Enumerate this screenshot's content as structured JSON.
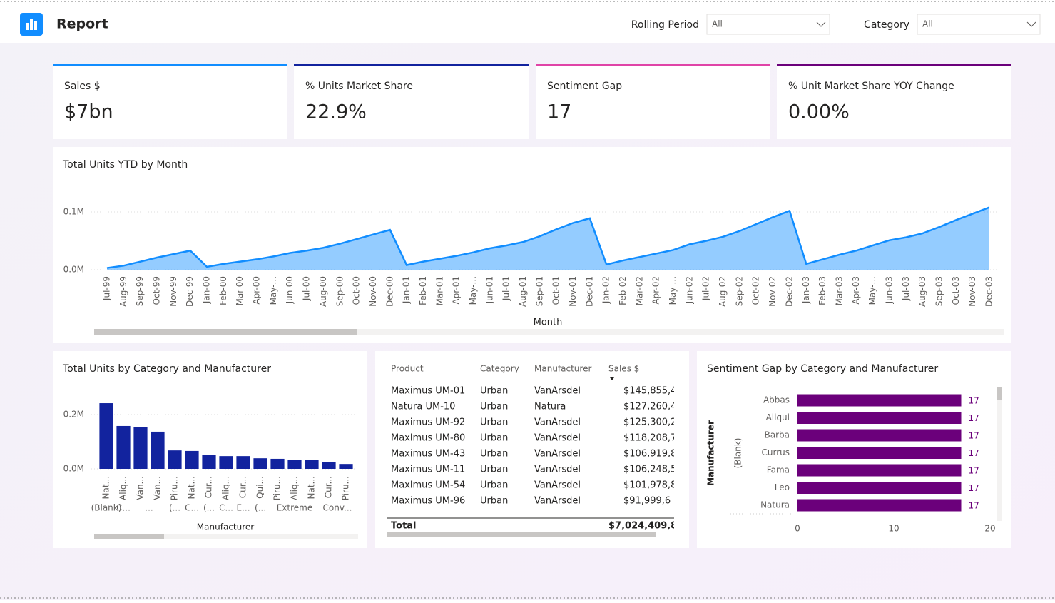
{
  "header": {
    "title": "Report"
  },
  "filters": [
    {
      "label": "Rolling Period",
      "value": "All"
    },
    {
      "label": "Category",
      "value": "All"
    }
  ],
  "kpis": [
    {
      "label": "Sales $",
      "value": "$7bn"
    },
    {
      "label": "% Units Market Share",
      "value": "22.9%"
    },
    {
      "label": "Sentiment Gap",
      "value": "17"
    },
    {
      "label": "% Unit Market Share YOY Change",
      "value": "0.00%"
    }
  ],
  "units_ytd_chart": {
    "type": "area",
    "title": "Total Units YTD by Month",
    "x_label": "Month",
    "categories": [
      "Jul-99",
      "Aug-99",
      "Sep-99",
      "Oct-99",
      "Nov-99",
      "Dec-99",
      "Jan-00",
      "Feb-00",
      "Mar-00",
      "Apr-00",
      "May-...",
      "Jun-00",
      "Jul-00",
      "Aug-00",
      "Sep-00",
      "Oct-00",
      "Nov-00",
      "Dec-00",
      "Jan-01",
      "Feb-01",
      "Mar-01",
      "Apr-01",
      "May-...",
      "Jun-01",
      "Jul-01",
      "Aug-01",
      "Sep-01",
      "Oct-01",
      "Nov-01",
      "Dec-01",
      "Jan-02",
      "Feb-02",
      "Mar-02",
      "Apr-02",
      "May-...",
      "Jun-02",
      "Jul-02",
      "Aug-02",
      "Sep-02",
      "Oct-02",
      "Nov-02",
      "Dec-02",
      "Jan-03",
      "Feb-03",
      "Mar-03",
      "Apr-03",
      "May-...",
      "Jun-03",
      "Jul-03",
      "Aug-03",
      "Sep-03",
      "Oct-03",
      "Nov-03",
      "Dec-03"
    ],
    "values": [
      3000,
      7000,
      14000,
      21000,
      27000,
      33000,
      5000,
      10000,
      14000,
      18000,
      23000,
      29000,
      33000,
      38000,
      45000,
      53000,
      61000,
      69000,
      8000,
      14000,
      19000,
      24000,
      30000,
      37000,
      42000,
      48000,
      58000,
      70000,
      81000,
      89000,
      9000,
      16000,
      22000,
      28000,
      34000,
      44000,
      50000,
      57000,
      67000,
      79000,
      91000,
      102000,
      10000,
      18000,
      26000,
      33000,
      42000,
      51000,
      56000,
      63000,
      74000,
      86000,
      97000,
      108000
    ],
    "color": "#118dff",
    "ylim": [
      0,
      110000
    ],
    "yticks": [
      {
        "value": 0,
        "label": "0.0M"
      },
      {
        "value": 100000,
        "label": "0.1M"
      }
    ],
    "grid": true
  },
  "units_by_manufacturer_chart": {
    "type": "bar",
    "title": "Total Units by Category and Manufacturer",
    "x_label": "Manufacturer",
    "categories": [
      "Nat...",
      "Aliq...",
      "Van...",
      "Van...",
      "Piru...",
      "Nat...",
      "Cur...",
      "Aliq...",
      "Cur...",
      "Qui...",
      "Piru...",
      "Aliq...",
      "Nat...",
      "Cur...",
      "Piru..."
    ],
    "category_groups": [
      "(Blank)",
      "C...",
      "...",
      null,
      "(...",
      "C...",
      "(...",
      "C...",
      "E...",
      "(...",
      "Extreme",
      null,
      null,
      "Conv...",
      null
    ],
    "values": [
      242000,
      158000,
      155000,
      137000,
      68000,
      66000,
      50000,
      47000,
      47000,
      39000,
      37000,
      32000,
      32000,
      26000,
      18000
    ],
    "color": "#12239e",
    "ylim": [
      0,
      260000
    ],
    "yticks": [
      {
        "value": 0,
        "label": "0.0M"
      },
      {
        "value": 200000,
        "label": "0.2M"
      }
    ],
    "grid": true
  },
  "sales_table": {
    "columns": [
      "Product",
      "Category",
      "Manufacturer",
      "Sales $"
    ],
    "rows": [
      [
        "Maximus UM-01",
        "Urban",
        "VanArsdel",
        "$145,855,4"
      ],
      [
        "Natura UM-10",
        "Urban",
        "Natura",
        "$127,260,4"
      ],
      [
        "Maximus UM-92",
        "Urban",
        "VanArsdel",
        "$125,300,2"
      ],
      [
        "Maximus UM-80",
        "Urban",
        "VanArsdel",
        "$118,208,7"
      ],
      [
        "Maximus UM-43",
        "Urban",
        "VanArsdel",
        "$106,919,8"
      ],
      [
        "Maximus UM-11",
        "Urban",
        "VanArsdel",
        "$106,248,5"
      ],
      [
        "Maximus UM-54",
        "Urban",
        "VanArsdel",
        "$101,978,8"
      ],
      [
        "Maximus UM-96",
        "Urban",
        "VanArsdel",
        "$91,999,6"
      ]
    ],
    "total": {
      "label": "Total",
      "value": "$7,024,409,8"
    }
  },
  "sentiment_chart": {
    "type": "hbar",
    "title": "Sentiment Gap by Category and Manufacturer",
    "y_label": "Manufacturer",
    "group_label": "(Blank)",
    "categories": [
      "Abbas",
      "Aliqui",
      "Barba",
      "Currus",
      "Fama",
      "Leo",
      "Natura"
    ],
    "values": [
      17,
      17,
      17,
      17,
      17,
      17,
      17
    ],
    "color": "#6b007b",
    "xlim": [
      0,
      20
    ],
    "xticks": [
      0,
      10,
      20
    ]
  }
}
